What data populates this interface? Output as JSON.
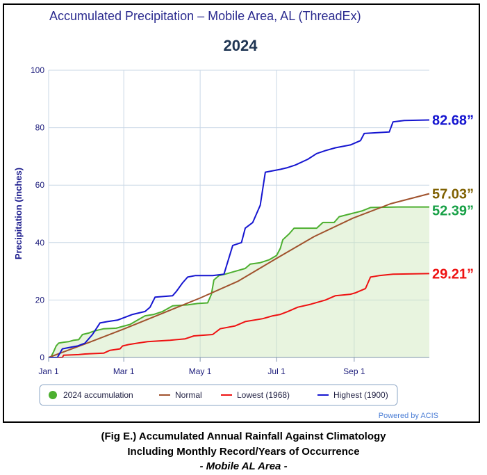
{
  "chart_data": {
    "type": "line",
    "title": "Accumulated Precipitation – Mobile Area, AL (ThreadEx)",
    "subtitle": "2024",
    "xlabel": "",
    "ylabel": "Precipitation (inches)",
    "ylim": [
      0,
      100
    ],
    "yticks": [
      0,
      20,
      40,
      60,
      80,
      100
    ],
    "xticks": [
      {
        "label": "Jan 1",
        "day": 1
      },
      {
        "label": "Mar 1",
        "day": 61
      },
      {
        "label": "May 1",
        "day": 122
      },
      {
        "label": "Jul 1",
        "day": 183
      },
      {
        "label": "Sep 1",
        "day": 245
      }
    ],
    "xlim": [
      1,
      305
    ],
    "grid": true,
    "legend_position": "bottom",
    "series": [
      {
        "name": "2024 accumulation",
        "color": "#4caf2f",
        "fill": "rgba(204,230,184,0.45)",
        "end_label": "52.39”",
        "end_label_color": "#17a046",
        "points": [
          [
            1,
            0
          ],
          [
            3,
            0.3
          ],
          [
            5,
            2
          ],
          [
            7,
            4
          ],
          [
            9,
            5
          ],
          [
            13,
            5.3
          ],
          [
            17,
            5.5
          ],
          [
            21,
            6
          ],
          [
            25,
            6.2
          ],
          [
            28,
            8
          ],
          [
            33,
            8.5
          ],
          [
            36,
            9
          ],
          [
            40,
            9.5
          ],
          [
            45,
            10
          ],
          [
            55,
            10.2
          ],
          [
            60,
            10.8
          ],
          [
            66,
            11.5
          ],
          [
            72,
            13
          ],
          [
            78,
            14.5
          ],
          [
            85,
            15
          ],
          [
            92,
            16
          ],
          [
            100,
            18
          ],
          [
            112,
            18.3
          ],
          [
            120,
            18.8
          ],
          [
            128,
            19
          ],
          [
            131,
            22
          ],
          [
            133,
            27
          ],
          [
            137,
            28.5
          ],
          [
            142,
            29
          ],
          [
            150,
            30
          ],
          [
            158,
            31
          ],
          [
            162,
            32.5
          ],
          [
            170,
            33
          ],
          [
            177,
            34
          ],
          [
            183,
            35.5
          ],
          [
            186,
            38
          ],
          [
            188,
            41
          ],
          [
            193,
            43
          ],
          [
            197,
            45
          ],
          [
            215,
            45
          ],
          [
            220,
            47
          ],
          [
            229,
            47
          ],
          [
            233,
            49
          ],
          [
            242,
            50
          ],
          [
            251,
            51
          ],
          [
            258,
            52.2
          ],
          [
            280,
            52.39
          ],
          [
            305,
            52.39
          ]
        ]
      },
      {
        "name": "Normal",
        "color": "#a0522d",
        "fill": "none",
        "end_label": "57.03”",
        "end_label_color": "#7f6000",
        "points": [
          [
            1,
            0
          ],
          [
            30,
            4.7
          ],
          [
            61,
            9.9
          ],
          [
            91,
            15.2
          ],
          [
            122,
            20.7
          ],
          [
            152,
            26.5
          ],
          [
            183,
            34.5
          ],
          [
            213,
            42.1
          ],
          [
            244,
            48.5
          ],
          [
            274,
            53.5
          ],
          [
            305,
            57.03
          ]
        ]
      },
      {
        "name": "Lowest (1968)",
        "color": "#ee1111",
        "fill": "none",
        "end_label": "29.21”",
        "end_label_color": "#ee1111",
        "points": [
          [
            1,
            0
          ],
          [
            12,
            0
          ],
          [
            13,
            0.8
          ],
          [
            25,
            1
          ],
          [
            30,
            1.2
          ],
          [
            45,
            1.5
          ],
          [
            50,
            2.5
          ],
          [
            58,
            3
          ],
          [
            60,
            4
          ],
          [
            65,
            4.5
          ],
          [
            72,
            5
          ],
          [
            80,
            5.5
          ],
          [
            98,
            6
          ],
          [
            110,
            6.5
          ],
          [
            117,
            7.5
          ],
          [
            132,
            8
          ],
          [
            138,
            10
          ],
          [
            150,
            11
          ],
          [
            158,
            12.5
          ],
          [
            172,
            13.5
          ],
          [
            180,
            14.5
          ],
          [
            186,
            15
          ],
          [
            192,
            16
          ],
          [
            200,
            17.5
          ],
          [
            210,
            18.5
          ],
          [
            222,
            20
          ],
          [
            230,
            21.5
          ],
          [
            242,
            22
          ],
          [
            246,
            22.5
          ],
          [
            254,
            24
          ],
          [
            258,
            28
          ],
          [
            265,
            28.5
          ],
          [
            276,
            29
          ],
          [
            305,
            29.21
          ]
        ]
      },
      {
        "name": "Highest (1900)",
        "color": "#1515d0",
        "fill": "none",
        "end_label": "82.68”",
        "end_label_color": "#1515d0",
        "points": [
          [
            1,
            0
          ],
          [
            8,
            0
          ],
          [
            12,
            3
          ],
          [
            18,
            3.5
          ],
          [
            24,
            4
          ],
          [
            30,
            5
          ],
          [
            36,
            8
          ],
          [
            42,
            12
          ],
          [
            48,
            12.5
          ],
          [
            56,
            13
          ],
          [
            62,
            14
          ],
          [
            68,
            15
          ],
          [
            78,
            16
          ],
          [
            82,
            17.5
          ],
          [
            86,
            21
          ],
          [
            100,
            21.5
          ],
          [
            103,
            23
          ],
          [
            108,
            26
          ],
          [
            112,
            28
          ],
          [
            118,
            28.5
          ],
          [
            132,
            28.5
          ],
          [
            141,
            29
          ],
          [
            148,
            39
          ],
          [
            155,
            40
          ],
          [
            158,
            45
          ],
          [
            164,
            47
          ],
          [
            170,
            53
          ],
          [
            174,
            64.5
          ],
          [
            186,
            65.5
          ],
          [
            191,
            66
          ],
          [
            198,
            67
          ],
          [
            208,
            69
          ],
          [
            215,
            71
          ],
          [
            222,
            72
          ],
          [
            230,
            73
          ],
          [
            242,
            74
          ],
          [
            250,
            75.5
          ],
          [
            253,
            78
          ],
          [
            273,
            78.5
          ],
          [
            276,
            82
          ],
          [
            285,
            82.5
          ],
          [
            305,
            82.68
          ]
        ]
      }
    ],
    "credit": "Powered by ACIS"
  },
  "caption": {
    "line1": "(Fig E.) Accumulated Annual Rainfall Against  Climatology",
    "line2": "Including Monthly Record/Years of Occurrence",
    "line3": "- Mobile AL Area -"
  }
}
